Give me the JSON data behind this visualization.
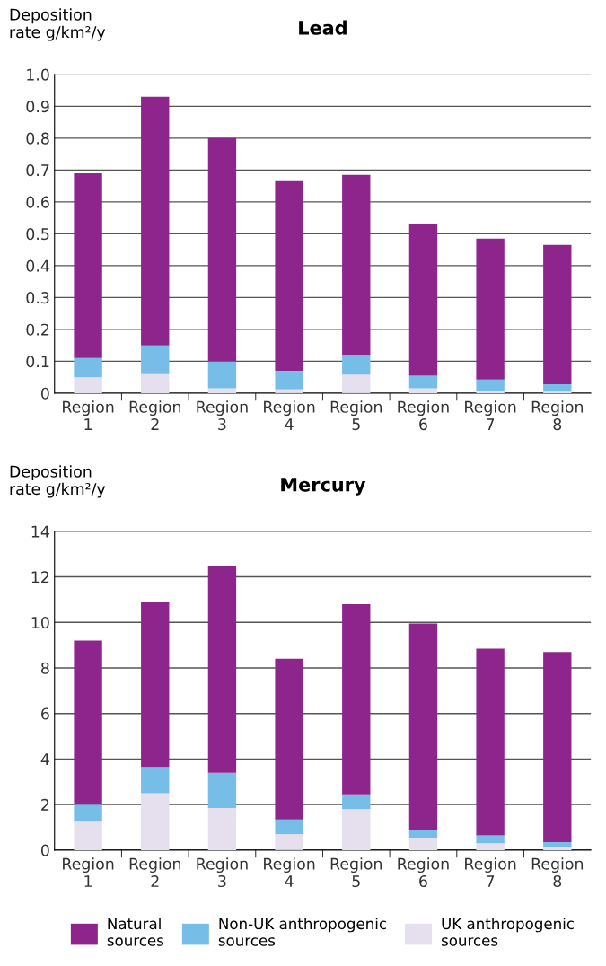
{
  "chart_data": [
    {
      "type": "bar",
      "title": "Lead",
      "ylabel": "Deposition\nrate g/km²/y",
      "stacked": true,
      "grid": "y",
      "legend": false,
      "categories": [
        "Region\n1",
        "Region\n2",
        "Region\n3",
        "Region\n4",
        "Region\n5",
        "Region\n6",
        "Region\n7",
        "Region\n8"
      ],
      "ylim": [
        0,
        1.0
      ],
      "yticks": [
        0,
        0.1,
        0.2,
        0.3,
        0.4,
        0.5,
        0.6,
        0.7,
        0.8,
        0.9,
        {
          "value": 1.0,
          "label": "1.0"
        }
      ],
      "series": [
        {
          "color": "#e5dfee",
          "values": [
            0.05,
            0.06,
            0.015,
            0.012,
            0.058,
            0.015,
            0.007,
            0.005
          ]
        },
        {
          "color": "#76bde8",
          "values": [
            0.06,
            0.09,
            0.085,
            0.058,
            0.062,
            0.04,
            0.036,
            0.023
          ]
        },
        {
          "color": "#8e258d",
          "values": [
            0.58,
            0.78,
            0.7,
            0.595,
            0.565,
            0.475,
            0.442,
            0.437
          ]
        }
      ]
    },
    {
      "type": "bar",
      "title": "Mercury",
      "ylabel": "Deposition\nrate g/km²/y",
      "stacked": true,
      "grid": "y",
      "legend": "bottom",
      "categories": [
        "Region\n1",
        "Region\n2",
        "Region\n3",
        "Region\n4",
        "Region\n5",
        "Region\n6",
        "Region\n7",
        "Region\n8"
      ],
      "ylim": [
        0,
        14
      ],
      "yticks": [
        0,
        2,
        4,
        6,
        8,
        10,
        12,
        14
      ],
      "series": [
        {
          "name": "UK anthropogenic\nsources",
          "color": "#e5dfee",
          "values": [
            1.25,
            2.5,
            1.85,
            0.7,
            1.8,
            0.55,
            0.3,
            0.12
          ]
        },
        {
          "name": "Non-UK anthropogenic\nsources",
          "color": "#76bde8",
          "values": [
            0.75,
            1.15,
            1.55,
            0.65,
            0.65,
            0.35,
            0.35,
            0.23
          ]
        },
        {
          "name": "Natural\nsources",
          "color": "#8e258d",
          "values": [
            7.2,
            7.25,
            9.05,
            7.05,
            8.35,
            9.05,
            8.2,
            8.35
          ]
        }
      ]
    }
  ]
}
